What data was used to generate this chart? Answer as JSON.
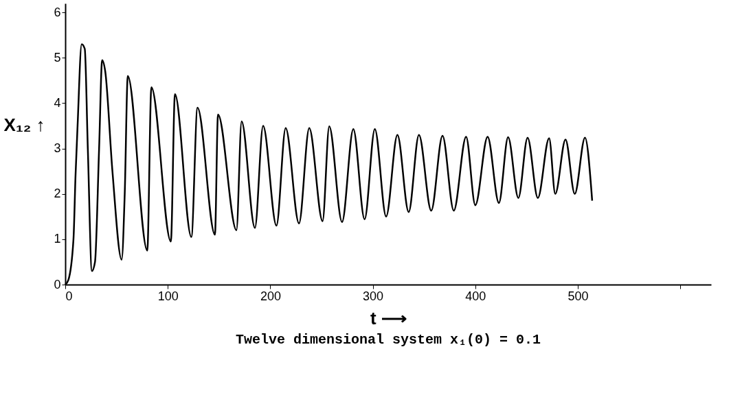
{
  "chart_data": {
    "type": "line",
    "xlabel": "t ⟶",
    "ylabel": "X₁₂ ↑",
    "annotations": [
      "Twelve dimensional system    x₁(0) = 0.1"
    ],
    "x": [
      0,
      3,
      8,
      10,
      12,
      16,
      19,
      22,
      26,
      29,
      33,
      36,
      39,
      46,
      55,
      58,
      61,
      80,
      84,
      103,
      107,
      123,
      129,
      146,
      149,
      167,
      172,
      185,
      193,
      206,
      215,
      228,
      238,
      251,
      257.5,
      270,
      281,
      292,
      302,
      313,
      324,
      335,
      345,
      357,
      368,
      379,
      391,
      400,
      412,
      423,
      432,
      442,
      451,
      461,
      472,
      478,
      488,
      497,
      507,
      514
    ],
    "series": [
      {
        "color": "#000000",
        "values": [
          0,
          0.1,
          1,
          2.4,
          3.5,
          5.3,
          5.2,
          3,
          0.3,
          0.5,
          3,
          4.95,
          4.7,
          2.5,
          0.55,
          2,
          4.6,
          0.75,
          4.35,
          0.95,
          4.2,
          1.05,
          3.9,
          1.1,
          3.75,
          1.2,
          3.6,
          1.25,
          3.5,
          1.3,
          3.45,
          1.35,
          3.45,
          1.4,
          3.49,
          1.38,
          3.43,
          1.44,
          3.43,
          1.5,
          3.3,
          1.6,
          3.3,
          1.63,
          3.28,
          1.63,
          3.26,
          1.75,
          3.26,
          1.8,
          3.25,
          1.91,
          3.24,
          1.91,
          3.23,
          2.0,
          3.2,
          2.0,
          3.24,
          1.85
        ]
      }
    ],
    "xlim": [
      0,
      630
    ],
    "ylim": [
      0,
      6.2
    ],
    "xticks": [
      0,
      100,
      200,
      300,
      400,
      500,
      {
        "value": 600,
        "label": null
      }
    ],
    "yticks": [
      0,
      1,
      2,
      3,
      4,
      5,
      6
    ],
    "grid": false,
    "legend": false,
    "marker": "none",
    "line_style": "solid"
  }
}
